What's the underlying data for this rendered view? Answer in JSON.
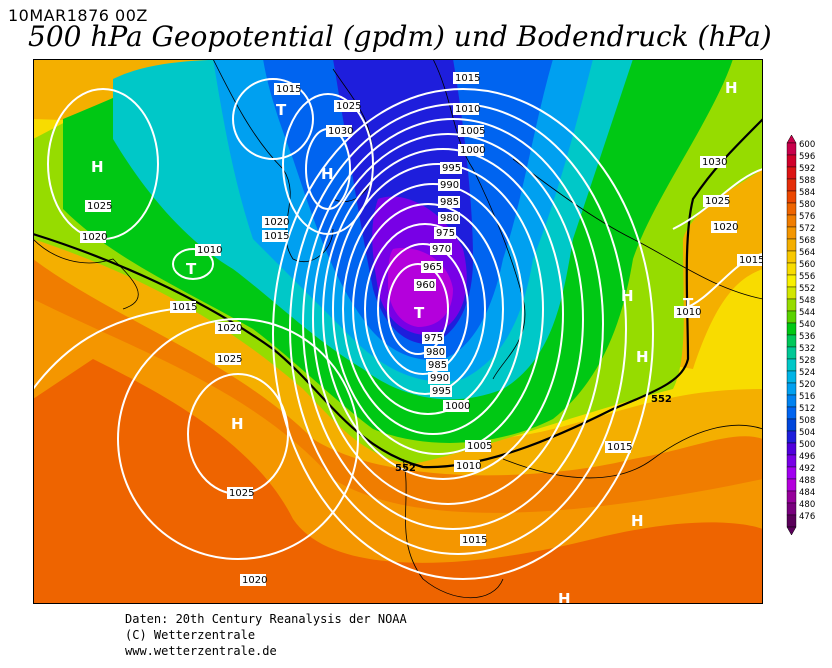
{
  "header": {
    "datetime": "10MAR1876 00Z",
    "title": "500 hPa Geopotential (gpdm) und Bodendruck (hPa)"
  },
  "footer": {
    "line1": "Daten: 20th Century Reanalysis der NOAA",
    "line2": "(C) Wetterzentrale",
    "line3": "www.wetterzentrale.de"
  },
  "colorbar": {
    "levels": [
      "600",
      "596",
      "592",
      "588",
      "584",
      "580",
      "576",
      "572",
      "568",
      "564",
      "560",
      "556",
      "552",
      "548",
      "544",
      "540",
      "536",
      "532",
      "528",
      "524",
      "520",
      "516",
      "512",
      "508",
      "504",
      "500",
      "496",
      "492",
      "488",
      "484",
      "480",
      "476"
    ],
    "colors": [
      "#c8004b",
      "#d0002a",
      "#dc1414",
      "#e42d0a",
      "#ec4600",
      "#ee6400",
      "#f07d00",
      "#f49600",
      "#f4af00",
      "#f8c800",
      "#f8dc00",
      "#f8f000",
      "#d2e600",
      "#96dc00",
      "#5ad200",
      "#00c814",
      "#00c85a",
      "#00c896",
      "#00c8c8",
      "#00b4e6",
      "#00a0f0",
      "#0082f0",
      "#0064f0",
      "#0046dc",
      "#1e1edc",
      "#5000dc",
      "#7800e6",
      "#a000f0",
      "#b400dc",
      "#96009b",
      "#78007d",
      "#5a005a"
    ]
  },
  "map": {
    "isobar_labels": [
      "1015",
      "1025",
      "1030",
      "1020",
      "1015",
      "1010",
      "1005",
      "1000",
      "995",
      "990",
      "985",
      "980",
      "975",
      "970",
      "965",
      "960",
      "1015",
      "1020",
      "1025",
      "1025",
      "1020",
      "1015",
      "1010",
      "1030",
      "1025",
      "1020",
      "1015",
      "1010",
      "975",
      "980",
      "985",
      "990",
      "995",
      "1000",
      "1005",
      "1010",
      "1015",
      "1015",
      "1010",
      "1025",
      "1020",
      "1015",
      "1020",
      "1025"
    ],
    "pressure_centers": [
      "H",
      "H",
      "H",
      "H",
      "H",
      "H",
      "H",
      "H",
      "T",
      "T",
      "T",
      "T"
    ],
    "contour_552_labels": [
      "552",
      "552"
    ]
  }
}
